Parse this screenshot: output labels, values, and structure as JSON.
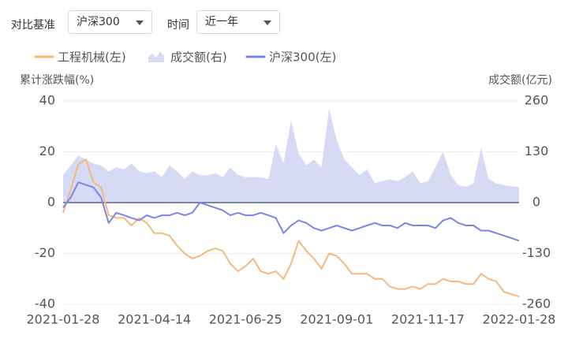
{
  "controls": {
    "benchmark_label": "对比基准",
    "benchmark": "沪深300",
    "period_label": "时间",
    "period": "近一年"
  },
  "chart_data": {
    "type": "line",
    "ylabel": "累计涨跌幅(%)",
    "y2label": "成交额(亿元)",
    "categories": [
      "2021-01-28",
      null,
      null,
      null,
      null,
      null,
      null,
      null,
      null,
      null,
      null,
      null,
      "2021-04-14",
      null,
      null,
      null,
      null,
      null,
      null,
      null,
      null,
      null,
      null,
      null,
      "2021-06-25",
      null,
      null,
      null,
      null,
      null,
      null,
      null,
      null,
      null,
      null,
      null,
      "2021-09-01",
      null,
      null,
      null,
      null,
      null,
      null,
      null,
      null,
      null,
      null,
      null,
      "2021-11-17",
      null,
      null,
      null,
      null,
      null,
      null,
      null,
      null,
      null,
      null,
      null,
      "2022-01-28"
    ],
    "series": [
      {
        "name": "工程机械(左)",
        "kind": "line",
        "color": "#f6b97b",
        "values": [
          -4,
          5,
          15,
          17,
          8,
          6,
          -5,
          -6,
          -6,
          -9,
          -6,
          -8,
          -12,
          -12,
          -13,
          -17,
          -20,
          -22,
          -21,
          -19,
          -18,
          -19,
          -24,
          -27,
          -25,
          -22,
          -27,
          -28,
          -27,
          -30,
          -24,
          -15,
          -19,
          -22,
          -26,
          -20,
          -21,
          -24,
          -28,
          -28,
          -28,
          -30,
          -30,
          -33,
          -34,
          -34,
          -33,
          -34,
          -32,
          -32,
          -30,
          -31,
          -31,
          -32,
          -32,
          -28,
          -30,
          -31,
          -35,
          -36,
          -37
        ]
      },
      {
        "name": "成交额(右)",
        "kind": "area",
        "axis": "y2",
        "color": "#d6daf5",
        "values": [
          70,
          95,
          120,
          110,
          100,
          95,
          80,
          90,
          85,
          100,
          80,
          75,
          80,
          65,
          95,
          80,
          60,
          80,
          70,
          70,
          75,
          65,
          90,
          70,
          65,
          65,
          65,
          60,
          150,
          100,
          210,
          125,
          95,
          110,
          90,
          240,
          160,
          110,
          90,
          70,
          85,
          50,
          55,
          60,
          55,
          65,
          80,
          50,
          55,
          90,
          130,
          70,
          45,
          40,
          50,
          140,
          60,
          50,
          45,
          42,
          40
        ]
      },
      {
        "name": "沪深300(左)",
        "kind": "line",
        "color": "#7c85e6",
        "values": [
          -2,
          2,
          8,
          7,
          6,
          2,
          -8,
          -4,
          -5,
          -6,
          -7,
          -5,
          -6,
          -5,
          -5,
          -4,
          -5,
          -4,
          0,
          -1,
          -2,
          -3,
          -5,
          -4,
          -5,
          -5,
          -4,
          -5,
          -6,
          -12,
          -9,
          -7,
          -8,
          -10,
          -11,
          -10,
          -9,
          -10,
          -11,
          -10,
          -9,
          -8,
          -9,
          -9,
          -10,
          -8,
          -9,
          -9,
          -9,
          -10,
          -7,
          -6,
          -8,
          -9,
          -9,
          -11,
          -11,
          -12,
          -13,
          -14,
          -15
        ]
      }
    ],
    "ylim": [
      -40,
      40
    ],
    "yticks": [
      -40,
      -20,
      0,
      20,
      40
    ],
    "y2lim": [
      -260,
      260
    ],
    "y2ticks": [
      -260,
      -130,
      0,
      130,
      260
    ],
    "grid": true
  }
}
